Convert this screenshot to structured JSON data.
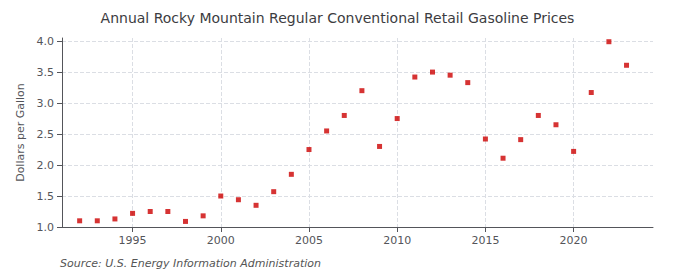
{
  "chart_data": {
    "type": "scatter",
    "title": "Annual Rocky Mountain Regular Conventional Retail Gasoline Prices",
    "ylabel": "Dollars per Gallon",
    "annotations": [
      "Source: U.S. Energy Information Administration"
    ],
    "x": [
      1992,
      1993,
      1994,
      1995,
      1996,
      1997,
      1998,
      1999,
      2000,
      2001,
      2002,
      2003,
      2004,
      2005,
      2006,
      2007,
      2008,
      2009,
      2010,
      2011,
      2012,
      2013,
      2014,
      2015,
      2016,
      2017,
      2018,
      2019,
      2020,
      2021,
      2022,
      2023
    ],
    "values": [
      1.1,
      1.1,
      1.13,
      1.22,
      1.25,
      1.25,
      1.09,
      1.18,
      1.5,
      1.44,
      1.35,
      1.57,
      1.85,
      2.25,
      2.55,
      2.8,
      3.2,
      2.3,
      2.75,
      3.42,
      3.5,
      3.45,
      3.33,
      2.42,
      2.11,
      2.41,
      2.8,
      2.65,
      2.22,
      3.17,
      3.99,
      3.61
    ],
    "color": "#cc0000",
    "marker": "square",
    "xlim": [
      1991.0,
      2024.5
    ],
    "xticks": [
      1995,
      2000,
      2005,
      2010,
      2015,
      2020
    ],
    "ylim": [
      1.0,
      4.05
    ],
    "yticks": [
      {
        "value": 1.0,
        "label": "1.0"
      },
      1.5,
      {
        "value": 2.0,
        "label": "2.0"
      },
      2.5,
      {
        "value": 3.0,
        "label": "3.0"
      },
      3.5,
      {
        "value": 4.0,
        "label": "4.0"
      }
    ],
    "grid": true
  }
}
